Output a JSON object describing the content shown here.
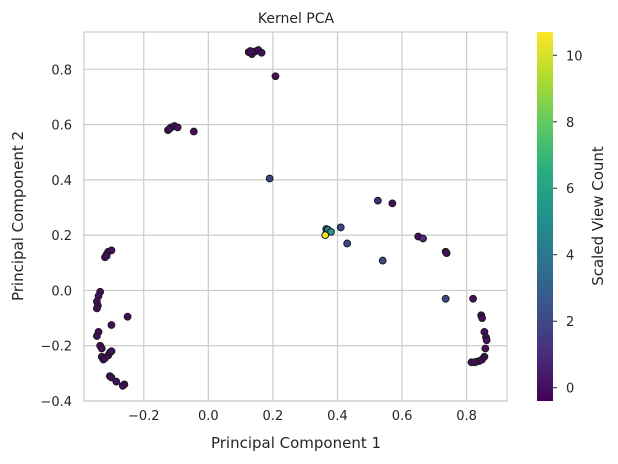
{
  "chart_data": {
    "type": "scatter",
    "title": "Kernel PCA",
    "xlabel": "Principal Component 1",
    "ylabel": "Principal Component 2",
    "xlim": [
      -0.385,
      0.925
    ],
    "ylim": [
      -0.4,
      0.935
    ],
    "xticks": [
      -0.2,
      0.0,
      0.2,
      0.4,
      0.6,
      0.8
    ],
    "xtick_labels": [
      "−0.2",
      "0.0",
      "0.2",
      "0.4",
      "0.6",
      "0.8"
    ],
    "yticks": [
      -0.4,
      -0.2,
      0.0,
      0.2,
      0.4,
      0.6,
      0.8
    ],
    "ytick_labels": [
      "−0.4",
      "−0.2",
      "0.0",
      "0.2",
      "0.4",
      "0.6",
      "0.8"
    ],
    "grid": true,
    "colorbar": {
      "label": "Scaled View Count",
      "colormap": "viridis",
      "range": [
        -0.4,
        10.7
      ],
      "ticks": [
        0,
        2,
        4,
        6,
        8,
        10
      ],
      "tick_labels": [
        "0",
        "2",
        "4",
        "6",
        "8",
        "10"
      ]
    },
    "points": [
      {
        "x": 0.125,
        "y": 0.862,
        "c": 0
      },
      {
        "x": 0.135,
        "y": 0.855,
        "c": 0
      },
      {
        "x": 0.145,
        "y": 0.865,
        "c": 0
      },
      {
        "x": 0.155,
        "y": 0.87,
        "c": 0
      },
      {
        "x": 0.165,
        "y": 0.86,
        "c": 0
      },
      {
        "x": 0.13,
        "y": 0.866,
        "c": 0
      },
      {
        "x": 0.208,
        "y": 0.775,
        "c": 0
      },
      {
        "x": -0.125,
        "y": 0.58,
        "c": 0
      },
      {
        "x": -0.115,
        "y": 0.59,
        "c": 0
      },
      {
        "x": -0.105,
        "y": 0.595,
        "c": 0
      },
      {
        "x": -0.095,
        "y": 0.59,
        "c": 0
      },
      {
        "x": -0.12,
        "y": 0.585,
        "c": 0
      },
      {
        "x": -0.045,
        "y": 0.575,
        "c": 0
      },
      {
        "x": 0.19,
        "y": 0.405,
        "c": 2
      },
      {
        "x": 0.362,
        "y": 0.2,
        "c": 10.5
      },
      {
        "x": 0.37,
        "y": 0.22,
        "c": 4.5
      },
      {
        "x": 0.38,
        "y": 0.212,
        "c": 5.5
      },
      {
        "x": 0.365,
        "y": 0.222,
        "c": 3
      },
      {
        "x": 0.41,
        "y": 0.228,
        "c": 2
      },
      {
        "x": 0.43,
        "y": 0.17,
        "c": 2
      },
      {
        "x": 0.525,
        "y": 0.325,
        "c": 1
      },
      {
        "x": 0.57,
        "y": 0.315,
        "c": 0
      },
      {
        "x": 0.54,
        "y": 0.108,
        "c": 2
      },
      {
        "x": 0.65,
        "y": 0.195,
        "c": 0
      },
      {
        "x": 0.665,
        "y": 0.188,
        "c": 1
      },
      {
        "x": 0.735,
        "y": 0.14,
        "c": 0
      },
      {
        "x": 0.738,
        "y": 0.135,
        "c": 0
      },
      {
        "x": 0.735,
        "y": -0.03,
        "c": 2
      },
      {
        "x": 0.82,
        "y": -0.03,
        "c": 0
      },
      {
        "x": 0.845,
        "y": -0.09,
        "c": 0
      },
      {
        "x": 0.848,
        "y": -0.1,
        "c": 0
      },
      {
        "x": 0.855,
        "y": -0.15,
        "c": 0
      },
      {
        "x": 0.86,
        "y": -0.17,
        "c": 0
      },
      {
        "x": 0.862,
        "y": -0.18,
        "c": 0
      },
      {
        "x": 0.858,
        "y": -0.21,
        "c": 0
      },
      {
        "x": 0.855,
        "y": -0.24,
        "c": 0
      },
      {
        "x": 0.848,
        "y": -0.25,
        "c": 0
      },
      {
        "x": 0.84,
        "y": -0.255,
        "c": 0
      },
      {
        "x": 0.83,
        "y": -0.258,
        "c": 0
      },
      {
        "x": 0.815,
        "y": -0.26,
        "c": 0
      },
      {
        "x": 0.825,
        "y": -0.26,
        "c": 0
      },
      {
        "x": -0.31,
        "y": 0.14,
        "c": 0
      },
      {
        "x": -0.3,
        "y": 0.145,
        "c": 0
      },
      {
        "x": -0.315,
        "y": 0.13,
        "c": 0
      },
      {
        "x": -0.32,
        "y": 0.12,
        "c": 0
      },
      {
        "x": -0.315,
        "y": 0.125,
        "c": 0
      },
      {
        "x": -0.335,
        "y": -0.005,
        "c": 0
      },
      {
        "x": -0.34,
        "y": -0.02,
        "c": 0
      },
      {
        "x": -0.345,
        "y": -0.04,
        "c": 0
      },
      {
        "x": -0.342,
        "y": -0.055,
        "c": 0
      },
      {
        "x": -0.345,
        "y": -0.065,
        "c": 0
      },
      {
        "x": -0.3,
        "y": -0.125,
        "c": 0
      },
      {
        "x": -0.25,
        "y": -0.095,
        "c": 0
      },
      {
        "x": -0.34,
        "y": -0.15,
        "c": 0
      },
      {
        "x": -0.345,
        "y": -0.165,
        "c": 0
      },
      {
        "x": -0.335,
        "y": -0.2,
        "c": 0
      },
      {
        "x": -0.33,
        "y": -0.21,
        "c": 0
      },
      {
        "x": -0.33,
        "y": -0.24,
        "c": 0
      },
      {
        "x": -0.325,
        "y": -0.25,
        "c": 0
      },
      {
        "x": -0.32,
        "y": -0.245,
        "c": 0
      },
      {
        "x": -0.31,
        "y": -0.235,
        "c": 0
      },
      {
        "x": -0.305,
        "y": -0.225,
        "c": 0
      },
      {
        "x": -0.3,
        "y": -0.22,
        "c": 0
      },
      {
        "x": -0.305,
        "y": -0.31,
        "c": 0
      },
      {
        "x": -0.3,
        "y": -0.315,
        "c": 0
      },
      {
        "x": -0.285,
        "y": -0.33,
        "c": 0
      },
      {
        "x": -0.26,
        "y": -0.34,
        "c": 0
      },
      {
        "x": -0.265,
        "y": -0.345,
        "c": 0
      }
    ]
  }
}
